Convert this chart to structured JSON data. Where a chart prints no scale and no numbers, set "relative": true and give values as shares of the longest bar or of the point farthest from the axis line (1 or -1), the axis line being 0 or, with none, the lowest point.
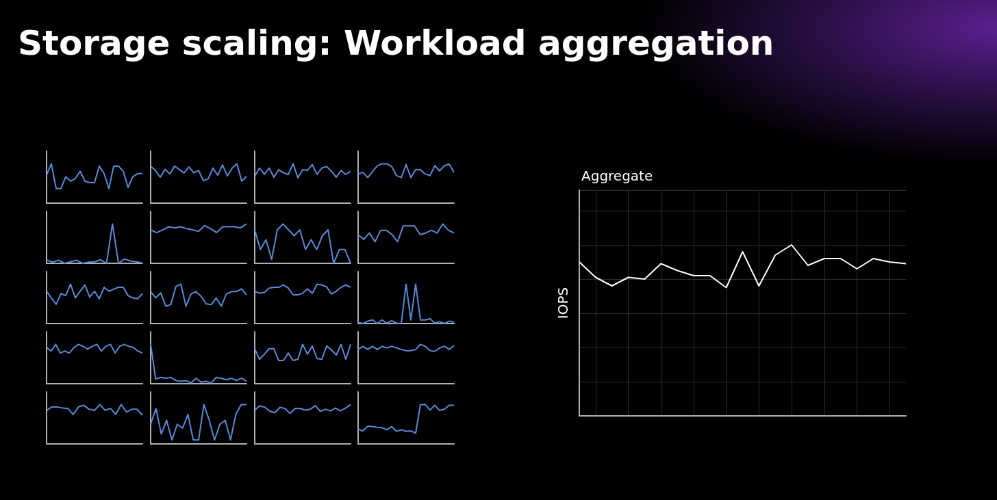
{
  "chart_data": [
    {
      "type": "line",
      "title": "Storage scaling: Workload aggregation",
      "relative": true,
      "color": "#5b8ad6",
      "categories": [
        null,
        null,
        null,
        null,
        null,
        null,
        null,
        null,
        null,
        null,
        null,
        null,
        null,
        null,
        null,
        null,
        null,
        null,
        null,
        null,
        null
      ],
      "values": [
        0.71,
        1,
        0.37,
        0.37,
        0.67,
        0.56,
        0.62,
        0.81,
        0.56,
        0.52,
        0.52,
        0.94,
        0.75,
        0.37,
        0.94,
        0.94,
        0.81,
        0.4,
        0.67,
        0.75,
        0.75
      ]
    },
    {
      "type": "line",
      "relative": true,
      "color": "#5b8ad6",
      "categories": [
        null,
        null,
        null,
        null,
        null,
        null,
        null,
        null,
        null,
        null,
        null,
        null,
        null,
        null,
        null,
        null,
        null,
        null,
        null,
        null,
        null
      ],
      "values": [
        0.94,
        0.83,
        0.66,
        0.86,
        0.74,
        0.94,
        0.85,
        0.77,
        0.92,
        0.77,
        0.83,
        0.57,
        0.62,
        0.89,
        0.71,
        0.97,
        0.69,
        0.89,
        1,
        0.56,
        0.68
      ]
    },
    {
      "type": "line",
      "relative": true,
      "color": "#5b8ad6",
      "categories": [
        null,
        null,
        null,
        null,
        null,
        null,
        null,
        null,
        null,
        null,
        null,
        null,
        null,
        null,
        null,
        null,
        null,
        null,
        null,
        null,
        null
      ],
      "values": [
        0.68,
        0.89,
        0.73,
        0.89,
        0.66,
        0.85,
        0.77,
        0.73,
        1,
        0.64,
        0.85,
        0.83,
        0.98,
        0.73,
        0.89,
        0.93,
        0.81,
        0.66,
        0.83,
        0.73,
        0.81
      ]
    },
    {
      "type": "line",
      "relative": true,
      "color": "#5b8ad6",
      "categories": [
        null,
        null,
        null,
        null,
        null,
        null,
        null,
        null,
        null,
        null,
        null,
        null,
        null,
        null,
        null,
        null,
        null,
        null,
        null,
        null,
        null
      ],
      "values": [
        0.74,
        0.78,
        0.65,
        0.8,
        0.95,
        1,
        1,
        0.93,
        0.7,
        0.65,
        0.98,
        0.65,
        0.85,
        0.85,
        0.74,
        0.7,
        0.95,
        0.82,
        0.95,
        0.99,
        0.78
      ]
    },
    {
      "type": "line",
      "relative": true,
      "color": "#5b8ad6",
      "categories": [
        null,
        null,
        null,
        null,
        null,
        null,
        null,
        null,
        null,
        null,
        null,
        null,
        null,
        null,
        null,
        null,
        null
      ],
      "values": [
        0.09,
        0.03,
        0.08,
        0,
        0.04,
        0.08,
        0,
        0.03,
        0.04,
        0.09,
        0,
        1,
        0,
        0.11,
        0.06,
        0.04,
        0.01
      ]
    },
    {
      "type": "line",
      "relative": true,
      "color": "#5b8ad6",
      "categories": [
        null,
        null,
        null,
        null,
        null,
        null,
        null,
        null,
        null,
        null,
        null,
        null,
        null,
        null,
        null,
        null,
        null
      ],
      "values": [
        0.85,
        0.78,
        0.85,
        0.93,
        0.9,
        0.93,
        0.88,
        0.85,
        0.81,
        0.96,
        0.88,
        0.78,
        0.93,
        0.93,
        0.93,
        0.9,
        1
      ]
    },
    {
      "type": "line",
      "relative": true,
      "color": "#5b8ad6",
      "categories": [
        null,
        null,
        null,
        null,
        null,
        null,
        null,
        null,
        null,
        null,
        null,
        null,
        null,
        null,
        null,
        null,
        null,
        null
      ],
      "values": [
        0.85,
        0.35,
        0.6,
        0.1,
        0.85,
        1,
        0.85,
        0.7,
        0.85,
        0.35,
        0.6,
        0.35,
        0.7,
        0.85,
        0,
        0.35,
        0.35,
        0
      ]
    },
    {
      "type": "line",
      "relative": true,
      "color": "#5b8ad6",
      "categories": [
        null,
        null,
        null,
        null,
        null,
        null,
        null,
        null,
        null,
        null,
        null,
        null,
        null,
        null,
        null,
        null,
        null,
        null
      ],
      "values": [
        0.73,
        0.61,
        0.77,
        0.55,
        0.84,
        0.84,
        0.73,
        0.55,
        0.95,
        0.95,
        0.95,
        0.73,
        0.77,
        0.84,
        0.77,
        1,
        0.84,
        0.77
      ]
    },
    {
      "type": "line",
      "relative": true,
      "color": "#5b8ad6",
      "categories": [
        null,
        null,
        null,
        null,
        null,
        null,
        null,
        null,
        null,
        null,
        null,
        null,
        null,
        null,
        null,
        null,
        null,
        null,
        null,
        null,
        null
      ],
      "values": [
        0.82,
        0.65,
        0.49,
        0.76,
        0.71,
        1,
        0.65,
        0.82,
        0.98,
        0.67,
        0.82,
        0.63,
        0.92,
        0.82,
        0.87,
        0.92,
        0.92,
        0.71,
        0.65,
        0.63,
        0.76
      ]
    },
    {
      "type": "line",
      "relative": true,
      "color": "#5b8ad6",
      "categories": [
        null,
        null,
        null,
        null,
        null,
        null,
        null,
        null,
        null,
        null,
        null,
        null,
        null,
        null,
        null,
        null,
        null,
        null,
        null,
        null
      ],
      "values": [
        0.81,
        0.65,
        0.78,
        0.44,
        0.48,
        0.94,
        1,
        0.44,
        0.75,
        0.81,
        0.69,
        0.5,
        0.48,
        0.65,
        0.44,
        0.75,
        0.81,
        0.81,
        0.88,
        0.73
      ]
    },
    {
      "type": "line",
      "relative": true,
      "color": "#5b8ad6",
      "categories": [
        null,
        null,
        null,
        null,
        null,
        null,
        null,
        null,
        null,
        null,
        null,
        null,
        null,
        null,
        null,
        null,
        null,
        null,
        null,
        null,
        null
      ],
      "values": [
        0.82,
        0.77,
        0.79,
        0.9,
        0.92,
        0.92,
        0.98,
        0.9,
        0.73,
        0.73,
        0.77,
        0.88,
        0.77,
        1,
        0.98,
        0.93,
        0.75,
        0.82,
        0.92,
        0.98,
        0.92
      ]
    },
    {
      "type": "line",
      "relative": true,
      "color": "#5b8ad6",
      "categories": [
        null,
        null,
        null,
        null,
        null,
        null,
        null,
        null,
        null,
        null,
        null,
        null,
        null,
        null,
        null,
        null,
        null,
        null,
        null,
        null,
        null
      ],
      "values": [
        0.03,
        0,
        0.06,
        0.09,
        0,
        0.09,
        0.01,
        0.07,
        0.01,
        0,
        1,
        0.09,
        1,
        0.09,
        0.09,
        0.12,
        0.01,
        0.05,
        0,
        0.06,
        0.03
      ]
    },
    {
      "type": "line",
      "relative": true,
      "color": "#5b8ad6",
      "categories": [
        null,
        null,
        null,
        null,
        null,
        null,
        null,
        null,
        null,
        null,
        null,
        null,
        null,
        null,
        null,
        null,
        null,
        null,
        null,
        null,
        null,
        null
      ],
      "values": [
        0.92,
        0.83,
        1,
        0.78,
        0.83,
        0.78,
        0.92,
        1,
        0.95,
        0.88,
        0.95,
        1,
        0.83,
        0.95,
        1,
        0.78,
        0.95,
        1,
        0.95,
        0.92,
        0.83,
        0.78
      ]
    },
    {
      "type": "line",
      "relative": true,
      "color": "#5b8ad6",
      "categories": [
        null,
        null,
        null,
        null,
        null,
        null,
        null,
        null,
        null,
        null,
        null,
        null,
        null,
        null,
        null,
        null,
        null,
        null,
        null,
        null
      ],
      "values": [
        1,
        0.12,
        0.16,
        0.14,
        0.16,
        0.08,
        0.06,
        0.08,
        0.02,
        0.14,
        0.04,
        0.06,
        0.02,
        0.16,
        0.14,
        0.1,
        0.14,
        0.08,
        0.14,
        0.06
      ]
    },
    {
      "type": "line",
      "relative": true,
      "color": "#5b8ad6",
      "categories": [
        null,
        null,
        null,
        null,
        null,
        null,
        null,
        null,
        null,
        null,
        null,
        null,
        null,
        null,
        null,
        null,
        null,
        null,
        null,
        null,
        null
      ],
      "values": [
        0.89,
        0.62,
        0.75,
        0.89,
        0.89,
        0.59,
        0.59,
        0.78,
        0.59,
        0.62,
        1,
        0.75,
        0.96,
        0.64,
        0.62,
        0.96,
        0.86,
        0.73,
        1,
        0.62,
        1
      ]
    },
    {
      "type": "line",
      "relative": true,
      "color": "#5b8ad6",
      "categories": [
        null,
        null,
        null,
        null,
        null,
        null,
        null,
        null,
        null,
        null,
        null,
        null,
        null,
        null,
        null,
        null,
        null,
        null,
        null,
        null,
        null
      ],
      "values": [
        0.87,
        0.95,
        0.87,
        0.95,
        0.87,
        0.95,
        0.91,
        0.95,
        0.91,
        0.87,
        0.84,
        0.84,
        0.87,
        1,
        0.95,
        0.84,
        0.82,
        0.91,
        0.95,
        0.87,
        0.97
      ]
    },
    {
      "type": "line",
      "relative": true,
      "color": "#5b8ad6",
      "categories": [
        null,
        null,
        null,
        null,
        null,
        null,
        null,
        null,
        null,
        null,
        null,
        null,
        null,
        null,
        null,
        null,
        null,
        null,
        null
      ],
      "values": [
        0.85,
        0.94,
        0.94,
        0.91,
        0.9,
        0.75,
        0.94,
        0.98,
        0.88,
        0.85,
        1,
        0.85,
        0.9,
        0.75,
        1,
        0.81,
        0.88,
        0.88,
        0.73
      ]
    },
    {
      "type": "line",
      "relative": true,
      "color": "#5b8ad6",
      "categories": [
        null,
        null,
        null,
        null,
        null,
        null,
        null,
        null,
        null,
        null,
        null,
        null,
        null,
        null,
        null,
        null,
        null,
        null,
        null
      ],
      "values": [
        0.5,
        0.9,
        0.25,
        0.6,
        0.1,
        0.5,
        0.4,
        0.75,
        0.1,
        0.1,
        1,
        0.6,
        0.1,
        0.5,
        0.6,
        0.1,
        0.75,
        1,
        1
      ]
    },
    {
      "type": "line",
      "relative": true,
      "color": "#5b8ad6",
      "categories": [
        null,
        null,
        null,
        null,
        null,
        null,
        null,
        null,
        null,
        null,
        null,
        null,
        null,
        null,
        null,
        null,
        null,
        null,
        null,
        null
      ],
      "values": [
        0.86,
        0.97,
        0.93,
        0.83,
        0.79,
        0.93,
        0.9,
        0.77,
        0.9,
        0.9,
        0.86,
        0.88,
        0.97,
        0.83,
        0.88,
        0.84,
        0.91,
        0.84,
        0.91,
        1
      ]
    },
    {
      "type": "line",
      "relative": true,
      "color": "#5b8ad6",
      "categories": [
        null,
        null,
        null,
        null,
        null,
        null,
        null,
        null,
        null,
        null,
        null,
        null,
        null,
        null,
        null,
        null,
        null,
        null,
        null,
        null,
        null
      ],
      "values": [
        0.38,
        0.33,
        0.45,
        0.44,
        0.42,
        0.41,
        0.36,
        0.44,
        0.32,
        0.36,
        0.32,
        0.33,
        0.27,
        1,
        1,
        0.86,
        0.98,
        0.85,
        0.88,
        0.98,
        0.98
      ]
    },
    {
      "type": "line",
      "title": "Aggregate",
      "ylabel": "IOPS",
      "relative": true,
      "grid": true,
      "color": "#ffffff",
      "categories": [
        null,
        null,
        null,
        null,
        null,
        null,
        null,
        null,
        null,
        null,
        null,
        null,
        null,
        null,
        null,
        null,
        null,
        null,
        null,
        null,
        null
      ],
      "values": [
        0.9,
        0.81,
        0.76,
        0.81,
        0.8,
        0.89,
        0.85,
        0.82,
        0.82,
        0.75,
        0.96,
        0.76,
        0.94,
        1,
        0.88,
        0.92,
        0.92,
        0.86,
        0.92,
        0.9,
        0.89
      ]
    }
  ]
}
